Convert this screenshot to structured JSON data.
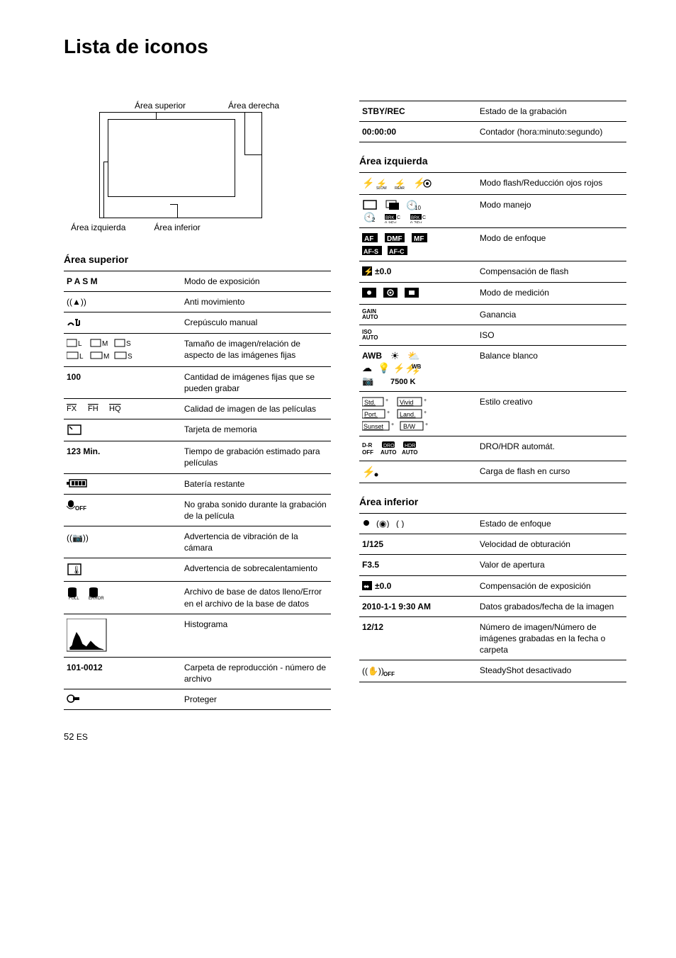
{
  "title": "Lista de iconos",
  "diagram": {
    "top_left_label": "Área superior",
    "top_right_label": "Área derecha",
    "bottom_left_label": "Área izquierda",
    "bottom_right_label": "Área inferior"
  },
  "sections": {
    "superior": "Área superior",
    "izquierda": "Área izquierda",
    "inferior": "Área inferior"
  },
  "superior_rows": [
    {
      "k": "P A S M",
      "bold": true,
      "v": "Modo de exposición"
    },
    {
      "k": "icon_anti",
      "v": "Anti movimiento"
    },
    {
      "k": "icon_crep",
      "v": "Crepúsculo manual"
    },
    {
      "k": "icon_sizes",
      "v": "Tamaño de imagen/relación de aspecto de las imágenes fijas"
    },
    {
      "k": "100",
      "bold": true,
      "v": "Cantidad de imágenes fijas que se pueden grabar"
    },
    {
      "k": "icon_fx",
      "v": "Calidad de imagen de las películas"
    },
    {
      "k": "icon_card",
      "v": "Tarjeta de memoria"
    },
    {
      "k": "123 Min.",
      "bold": true,
      "v": "Tiempo de grabación estimado para películas"
    },
    {
      "k": "icon_batt",
      "v": "Batería restante"
    },
    {
      "k": "icon_micoff",
      "v": "No graba sonido durante la grabación de la película"
    },
    {
      "k": "icon_shake",
      "v": "Advertencia de vibración de la cámara"
    },
    {
      "k": "icon_heat",
      "v": "Advertencia de sobrecalentamiento"
    },
    {
      "k": "icon_dbfull",
      "v": "Archivo de base de datos lleno/Error en el archivo de la base de datos"
    },
    {
      "k": "icon_histo",
      "v": "Histograma"
    },
    {
      "k": "101-0012",
      "bold": true,
      "v": "Carpeta de reproducción - número de archivo"
    },
    {
      "k": "icon_protect",
      "v": "Proteger"
    }
  ],
  "right_top_rows": [
    {
      "k": "STBY/REC",
      "bold": true,
      "v": "Estado de la grabación"
    },
    {
      "k": "00:00:00",
      "bold": true,
      "v": "Contador (hora:minuto:segundo)"
    }
  ],
  "izquierda_rows": [
    {
      "k": "icon_flash",
      "v": "Modo flash/Reducción ojos rojos"
    },
    {
      "k": "icon_drive",
      "v": "Modo manejo"
    },
    {
      "k": "icon_focus",
      "v": "Modo de enfoque"
    },
    {
      "k": "icon_flashcomp",
      "v": "Compensación de flash"
    },
    {
      "k": "icon_meter",
      "v": "Modo de medición"
    },
    {
      "k": "GAIN AUTO",
      "small": true,
      "v": "Ganancia"
    },
    {
      "k": "ISO AUTO",
      "small": true,
      "v": "ISO"
    },
    {
      "k": "icon_wb",
      "v": "Balance blanco"
    },
    {
      "k": "icon_creative",
      "v": "Estilo creativo"
    },
    {
      "k": "icon_dro",
      "v": "DRO/HDR automát."
    },
    {
      "k": "icon_flashcharge",
      "v": "Carga de flash en curso"
    }
  ],
  "inferior_rows": [
    {
      "k": "icon_focusstate",
      "v": "Estado de enfoque"
    },
    {
      "k": "1/125",
      "bold": true,
      "v": "Velocidad de obturación"
    },
    {
      "k": "F3.5",
      "bold": true,
      "v": "Valor de apertura"
    },
    {
      "k": "icon_expcomp",
      "v": "Compensación de exposición"
    },
    {
      "k": "2010-1-1 9:30 AM",
      "bold": true,
      "v": "Datos grabados/fecha de la imagen"
    },
    {
      "k": "12/12",
      "bold": true,
      "v": "Número de imagen/Número de imágenes grabadas en la fecha o carpeta"
    },
    {
      "k": "icon_ssoff",
      "v": "SteadyShot desactivado"
    }
  ],
  "page": {
    "num": "52",
    "suffix": "ES"
  },
  "icon_svgs": {
    "icon_anti": "<svg width='32' height='16'><text x='0' y='12' font-size='12'>((▲))</text></svg>",
    "icon_crep": "<svg width='28' height='16'><path d='M2 12 Q6 6 10 12' fill='none' stroke='#000' stroke-width='2'/><path d='M14 4 L14 12 M12 4 L16 4 M13 12 L18 12 M18 12 L18 5' fill='none' stroke='#000' stroke-width='2'/></svg>",
    "icon_sizes": "<svg width='120' height='34'><g font-size='10' font-family='Arial'><rect x='0' y='2' width='14' height='10' fill='none' stroke='#000'/><text x='16' y='11'>L</text><rect x='34' y='2' width='14' height='10' fill='none' stroke='#000'/><text x='50' y='11'>M</text><rect x='68' y='2' width='14' height='10' fill='none' stroke='#000'/><text x='84' y='11'>S</text><rect x='0' y='20' width='16' height='9' fill='none' stroke='#000'/><text x='18' y='29'>L</text><rect x='34' y='20' width='16' height='9' fill='none' stroke='#000'/><text x='52' y='29'>M</text><rect x='68' y='20' width='16' height='9' fill='none' stroke='#000'/><text x='86' y='29'>S</text></g></svg>",
    "icon_fx": "<svg width='90' height='14'><text x='0' y='11' font-size='11' text-decoration='overline'>FX</text><text x='30' y='11' font-size='11' text-decoration='overline'>FH</text><text x='60' y='11' font-size='11' text-decoration='overline'>HQ</text></svg>",
    "icon_card": "<svg width='24' height='18'><rect x='2' y='2' width='18' height='13' fill='none' stroke='#000' stroke-width='1.5'/><path d='M4 4 L8 8' stroke='#000' stroke-width='1.5'/></svg>",
    "icon_batt": "<svg width='36' height='14'><rect x='4' y='2' width='24' height='10' fill='none' stroke='#000' stroke-width='1.5'/><rect x='0' y='5' width='4' height='4' fill='#000'/><rect x='7' y='4' width='4' height='6' fill='#000'/><rect x='12' y='4' width='4' height='6' fill='#000'/><rect x='17' y='4' width='4' height='6' fill='#000'/><rect x='22' y='4' width='4' height='6' fill='#000'/></svg>",
    "icon_micoff": "<svg width='30' height='18'><rect x='2' y='2' width='8' height='10' rx='4' fill='#000'/><path d='M0 10 Q6 18 12 10' fill='none' stroke='#000'/><text x='12' y='16' font-size='8' font-weight='bold'>OFF</text></svg>",
    "icon_shake": "<svg width='34' height='20'><text x='0' y='14' font-size='12'>((📷))</text></svg>",
    "icon_heat": "<svg width='24' height='20'><rect x='2' y='2' width='18' height='15' fill='none' stroke='#000' stroke-width='1.5'/><text x='7' y='14' font-size='11'>🌡</text></svg>",
    "icon_dbfull": "<svg width='70' height='20'><path d='M2 4 Q2 2 8 2 Q14 2 14 4 L14 14 Q14 16 8 16 Q2 16 2 14 Z' fill='#000'/><text x='3' y='19' font-size='6'>FULL</text><path d='M32 4 Q32 2 38 2 Q44 2 44 4 L44 14 Q44 16 38 16 Q32 16 32 14 Z' fill='#000'/><text x='31' y='19' font-size='6'>ERROR</text></svg>",
    "icon_histo": "<svg width='58' height='48'><rect x='0' y='0' width='56' height='46' fill='none' stroke='#000'/><polyline points='4,42 8,38 10,30 14,20 18,26 22,36 28,40 34,32 40,38 46,42 52,44' fill='#000' stroke='#000'/><polygon points='4,44 8,38 10,30 14,20 18,26 22,36 28,40 34,32 40,38 46,42 52,44' fill='#000'/></svg>",
    "icon_protect": "<svg width='20' height='14'><circle cx='6' cy='7' r='5' fill='none' stroke='#000' stroke-width='1.5'/><rect x='9' y='5' width='9' height='4' fill='#000'/></svg>",
    "icon_flash": "<svg width='120' height='18'><text x='0' y='13' font-size='14'>⚡</text><text x='20' y='13' font-size='12'>⚡</text><text x='20' y='17' font-size='5'>SLOW</text><text x='46' y='13' font-size='12'>⚡</text><text x='46' y='17' font-size='5'>REAR</text><text x='72' y='13' font-size='14'>⚡</text><circle cx='92' cy='9' r='5' fill='none' stroke='#000' stroke-width='1.2'/><circle cx='92' cy='9' r='2' fill='#000'/></svg>",
    "icon_drive": "<svg width='140' height='34'><rect x='2' y='2' width='18' height='12' fill='none' stroke='#000' stroke-width='1.5'/><rect x='34' y='2' width='14' height='10' fill='none' stroke='#000'/><rect x='38' y='5' width='14' height='10' fill='#000'/><text x='62' y='13' font-size='13'>🕙</text><text x='74' y='15' font-size='8'>10</text><text x='2' y='30' font-size='13'>🕙</text><text x='14' y='32' font-size='8'>2</text><rect x='32' y='21' width='16' height='8' fill='#000'/><text x='33' y='28' font-size='6' fill='#fff'>BRK</text><text x='49' y='28' font-size='7'>C</text><text x='32' y='36' font-size='6'>0.3EV</text><rect x='68' y='21' width='16' height='8' fill='#000'/><text x='69' y='28' font-size='6' fill='#fff'>BRK</text><text x='85' y='28' font-size='7'>C</text><text x='68' y='36' font-size='6'>0.7EV</text></svg>",
    "icon_focus": "<svg width='150' height='34'><rect x='0' y='1' width='22' height='13' fill='#000'/><text x='3' y='12' font-size='10' fill='#fff' font-weight='bold'>AF</text><rect x='32' y='1' width='28' height='13' fill='#000'/><text x='35' y='12' font-size='10' fill='#fff' font-weight='bold'>DMF</text><rect x='70' y='1' width='22' height='13' fill='#000'/><text x='73' y='12' font-size='10' fill='#fff' font-weight='bold'>MF</text><rect x='0' y='19' width='28' height='13' fill='#000'/><text x='2' y='30' font-size='9' fill='#fff' font-weight='bold'>AF-S</text><rect x='36' y='19' width='28' height='13' fill='#000'/><text x='38' y='30' font-size='9' fill='#fff' font-weight='bold'>AF-C</text></svg>",
    "icon_flashcomp": "<svg width='60' height='16'><rect x='0' y='1' width='14' height='13' fill='#000'/><text x='2' y='12' font-size='11' fill='#fff'>⚡</text><text x='18' y='12' font-size='12' font-weight='bold'>±0.0</text></svg>",
    "icon_meter": "<svg width='90' height='18'><rect x='0' y='1' width='20' height='14' fill='#000'/><circle cx='10' cy='8' r='3' fill='#fff'/><rect x='30' y='1' width='20' height='14' fill='#000'/><circle cx='40' cy='8' r='4' fill='none' stroke='#fff' stroke-width='1.5'/><circle cx='40' cy='8' r='1.5' fill='#fff'/><rect x='60' y='1' width='20' height='14' fill='#000'/><rect x='66' y='5' width='8' height='6' fill='#fff'/></svg>",
    "icon_wb": "<svg width='150' height='52'><text x='0' y='12' font-size='12' font-weight='bold'>AWB</text><text x='40' y='13' font-size='14'>☀</text><text x='64' y='13' font-size='14'>⛅</text><text x='0' y='30' font-size='14'>☁</text><text x='22' y='30' font-size='14'>💡</text><text x='44' y='30' font-size='13'>⚡⚡</text><text x='70' y='26' font-size='8' font-weight='bold'>WB</text><text x='70' y='33' font-size='10'>⚡</text><text x='0' y='48' font-size='13'>📷</text><text x='40' y='48' font-size='11' font-weight='bold'>7500 K</text></svg>",
    "icon_creative": "<svg width='150' height='50'><rect x='0' y='2' width='30' height='12' fill='none' stroke='#000'/><text x='3' y='12' font-size='9' text-decoration='underline'>Std.</text><text x='33' y='8' font-size='7'>+</text><rect x='50' y='2' width='34' height='12' fill='none' stroke='#000'/><text x='53' y='12' font-size='9' text-decoration='underline'>Vivid</text><text x='87' y='8' font-size='7'>+</text><rect x='0' y='19' width='32' height='12' fill='none' stroke='#000'/><text x='3' y='29' font-size='9' text-decoration='underline'>Port.</text><text x='35' y='25' font-size='7'>+</text><rect x='50' y='19' width='34' height='12' fill='none' stroke='#000'/><text x='53' y='29' font-size='9' text-decoration='underline'>Land.</text><text x='87' y='25' font-size='7'>+</text><rect x='0' y='36' width='38' height='12' fill='none' stroke='#000'/><text x='2' y='46' font-size='9' text-decoration='underline'>Sunset</text><text x='41' y='42' font-size='7'>+</text><rect x='54' y='36' width='32' height='12' fill='none' stroke='#000'/><text x='58' y='46' font-size='9'>B/W</text><text x='89' y='42' font-size='7'>+</text></svg>",
    "icon_dro": "<svg width='120' height='22'><text x='0' y='9' font-size='8' font-weight='bold'>D-R</text><text x='0' y='19' font-size='8' font-weight='bold'>OFF</text><rect x='28' y='1' width='18' height='9' rx='2' fill='#000'/><text x='30' y='9' font-size='7' fill='#fff'>DRO</text><text x='26' y='19' font-size='8' font-weight='bold'>AUTO</text><rect x='58' y='1' width='18' height='9' rx='2' fill='#000'/><text x='60' y='9' font-size='7' fill='#fff'>HDR</text><text x='56' y='19' font-size='8' font-weight='bold'>AUTO</text></svg>",
    "icon_flashcharge": "<svg width='30' height='18'><text x='0' y='14' font-size='15'>⚡</text><circle cx='20' cy='13' r='2.5' fill='#000'/></svg>",
    "icon_focusstate": "<svg width='70' height='14'><circle cx='6' cy='7' r='4' fill='#000'/><text x='20' y='12' font-size='12'>(◉)</text><text x='48' y='12' font-size='12'>( )</text></svg>",
    "icon_expcomp": "<svg width='60' height='16'><rect x='0' y='1' width='14' height='13' fill='#000'/><text x='2' y='12' font-size='10' fill='#fff'>⬌</text><text x='18' y='12' font-size='12' font-weight='bold'>±0.0</text></svg>",
    "icon_ssoff": "<svg width='46' height='18'><text x='0' y='13' font-size='12'>((✋))</text><text x='30' y='16' font-size='8' font-weight='bold'>OFF</text></svg>"
  }
}
